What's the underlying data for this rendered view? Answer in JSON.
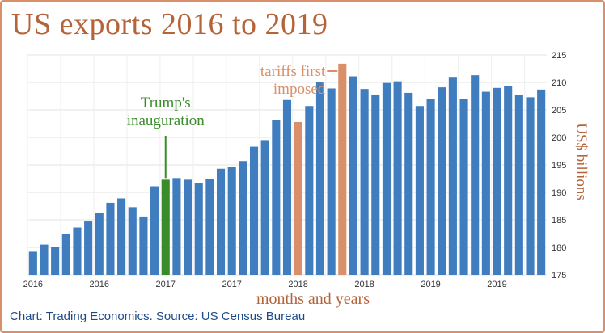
{
  "title": "US exports 2016 to 2019",
  "footer": "Chart: Trading Economics. Source: US Census Bureau",
  "colors": {
    "bar": "#3f7dbf",
    "inauguration": "#3a8c2a",
    "tariff": "#d9906a",
    "title": "#b5643a",
    "footer": "#1f4a8a"
  },
  "chart_data": {
    "type": "bar",
    "xlabel": "months and years",
    "ylabel": "US$ billions",
    "ylim": [
      175,
      215
    ],
    "yticks": [
      175,
      180,
      185,
      190,
      195,
      200,
      205,
      210,
      215
    ],
    "xtick_labels": [
      "2016",
      "2016",
      "2017",
      "2017",
      "2018",
      "2018",
      "2019",
      "2019"
    ],
    "grid": true,
    "values": [
      179.2,
      180.5,
      180.0,
      182.4,
      183.6,
      184.7,
      186.3,
      188.1,
      188.9,
      187.3,
      185.6,
      191.1,
      192.3,
      192.6,
      192.3,
      191.7,
      192.4,
      194.3,
      194.7,
      195.7,
      198.3,
      199.5,
      203.1,
      206.8,
      202.8,
      205.7,
      210.1,
      208.9,
      213.4,
      211.1,
      208.8,
      207.8,
      209.9,
      210.2,
      208.1,
      205.7,
      207.0,
      209.1,
      211.0,
      207.0,
      211.3,
      208.3,
      209.0,
      209.4,
      207.7,
      207.3,
      208.7
    ],
    "highlights": [
      {
        "index": 12,
        "role": "inauguration",
        "label_lines": [
          "Trump's",
          "inauguration"
        ]
      },
      {
        "index": 24,
        "role": "tariff",
        "label_lines": []
      },
      {
        "index": 28,
        "role": "tariff",
        "label_lines": [
          "tariffs first",
          "imposed"
        ]
      }
    ]
  }
}
